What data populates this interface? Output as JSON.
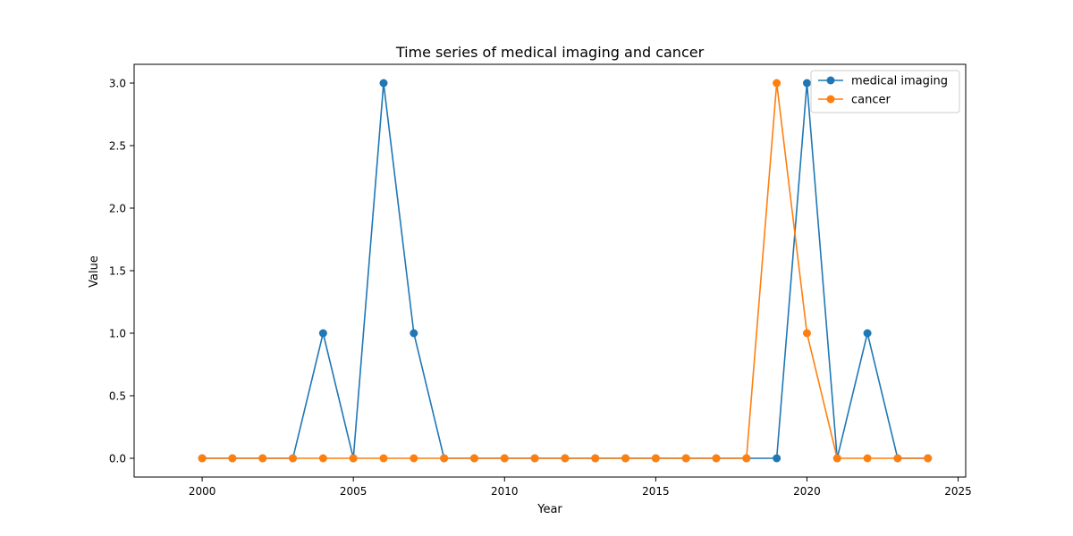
{
  "chart_data": {
    "type": "line",
    "title": "Time series of medical imaging and cancer",
    "xlabel": "Year",
    "ylabel": "Value",
    "xlim": [
      1997.75,
      2025.25
    ],
    "ylim": [
      -0.15,
      3.15
    ],
    "xticks": [
      2000,
      2005,
      2010,
      2015,
      2020,
      2025
    ],
    "xtick_labels": [
      "2000",
      "2005",
      "2010",
      "2015",
      "2020",
      "2025"
    ],
    "yticks": [
      0.0,
      0.5,
      1.0,
      1.5,
      2.0,
      2.5,
      3.0
    ],
    "ytick_labels": [
      "0.0",
      "0.5",
      "1.0",
      "1.5",
      "2.0",
      "2.5",
      "3.0"
    ],
    "grid": false,
    "legend": "top-right",
    "x": [
      2000,
      2001,
      2002,
      2003,
      2004,
      2005,
      2006,
      2007,
      2008,
      2009,
      2010,
      2011,
      2012,
      2013,
      2014,
      2015,
      2016,
      2017,
      2018,
      2019,
      2020,
      2021,
      2022,
      2023,
      2024
    ],
    "series": [
      {
        "name": "medical imaging",
        "color": "#1f77b4",
        "values": [
          0,
          0,
          0,
          0,
          1,
          0,
          3,
          1,
          0,
          0,
          0,
          0,
          0,
          0,
          0,
          0,
          0,
          0,
          0,
          0,
          3,
          0,
          1,
          0,
          0
        ]
      },
      {
        "name": "cancer",
        "color": "#ff7f0e",
        "values": [
          0,
          0,
          0,
          0,
          0,
          0,
          0,
          0,
          0,
          0,
          0,
          0,
          0,
          0,
          0,
          0,
          0,
          0,
          0,
          3,
          1,
          0,
          0,
          0,
          0
        ]
      }
    ]
  }
}
